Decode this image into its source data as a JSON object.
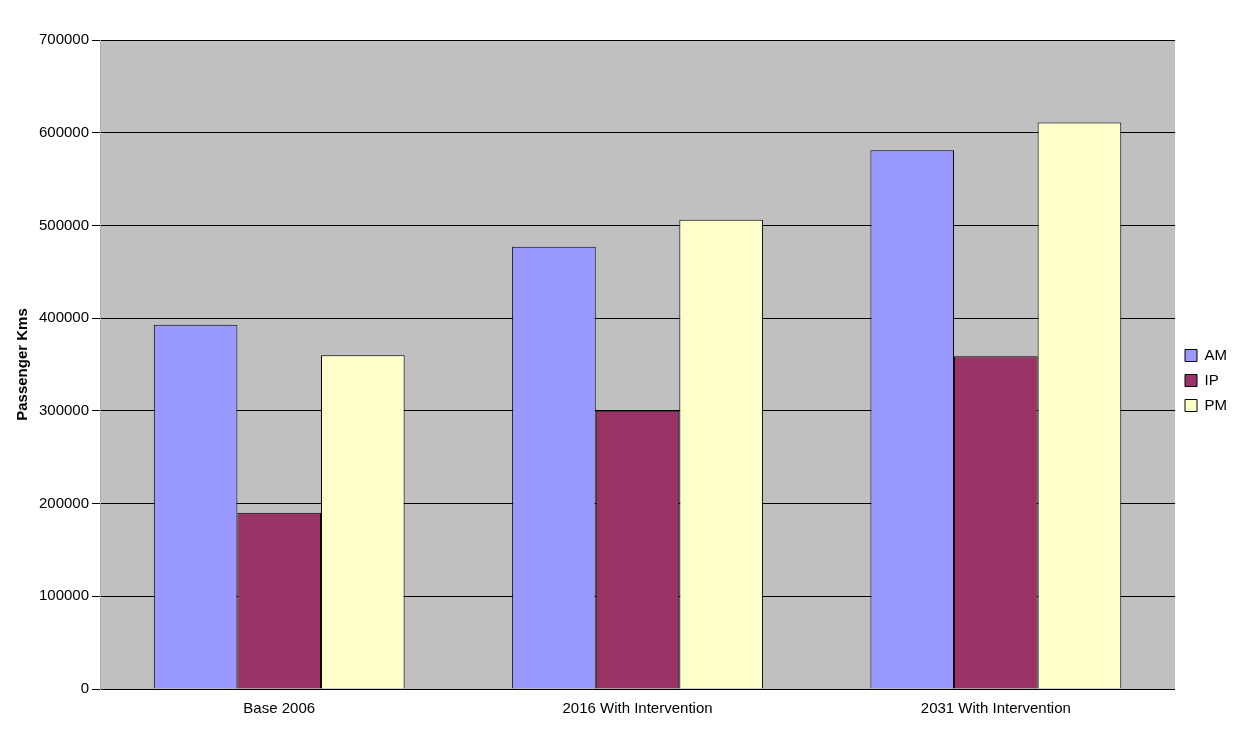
{
  "chart_data": {
    "type": "bar",
    "ylabel": "Passenger Kms",
    "categories": [
      "Base 2006",
      "2016 With Intervention",
      "2031 With Intervention"
    ],
    "series": [
      {
        "name": "AM",
        "color": "#9999ff",
        "values": [
          393000,
          477000,
          581000
        ]
      },
      {
        "name": "IP",
        "color": "#993366",
        "values": [
          190000,
          300000,
          359000
        ]
      },
      {
        "name": "PM",
        "color": "#ffffcc",
        "values": [
          360000,
          506000,
          611000
        ]
      }
    ],
    "ylim": [
      0,
      700000
    ],
    "yticks": [
      0,
      100000,
      200000,
      300000,
      400000,
      500000,
      600000,
      700000
    ],
    "grid": "y",
    "legend": "right"
  }
}
